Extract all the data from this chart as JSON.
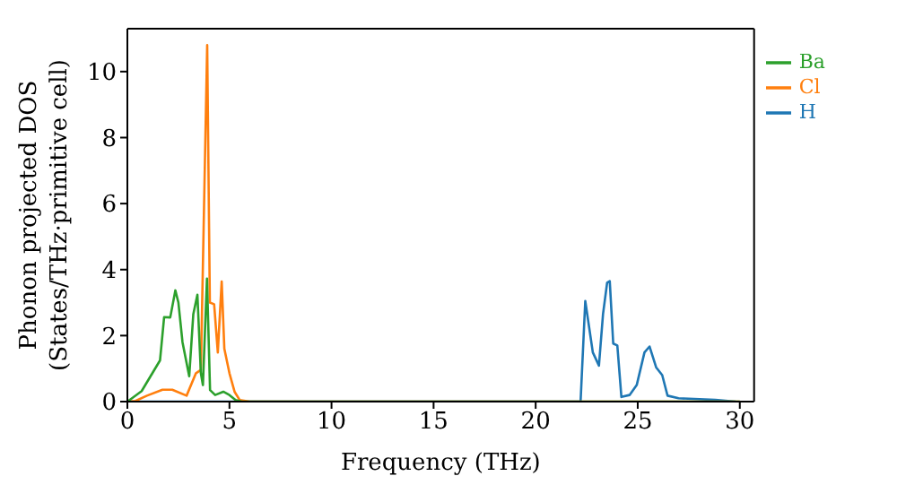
{
  "chart_data": {
    "type": "line",
    "xlabel": "Frequency (THz)",
    "ylabel": "Phonon projected DOS\n(States/THz·primitive cell)",
    "xlim": [
      0,
      30.7
    ],
    "ylim": [
      0,
      11.3
    ],
    "xticks": [
      0,
      5,
      10,
      15,
      20,
      25,
      30
    ],
    "yticks": [
      0,
      2,
      4,
      6,
      8,
      10
    ],
    "legend": "top right",
    "grid": false,
    "marker": "none",
    "line_style": "solid",
    "series": [
      {
        "name": "H",
        "color": "#1f77b4",
        "x": [
          0,
          22.2,
          22.43,
          22.8,
          23.1,
          23.3,
          23.5,
          23.63,
          23.8,
          24.0,
          24.2,
          24.6,
          24.95,
          25.33,
          25.58,
          25.9,
          26.2,
          26.46,
          27,
          28.8,
          29.8
        ],
        "values": [
          0,
          0,
          3.05,
          1.49,
          1.09,
          2.65,
          3.6,
          3.65,
          1.76,
          1.7,
          0.14,
          0.2,
          0.5,
          1.49,
          1.67,
          1.04,
          0.8,
          0.18,
          0.1,
          0.05,
          0
        ]
      },
      {
        "name": "Cl",
        "color": "#ff7f0e",
        "x": [
          0,
          0.4,
          0.96,
          1.72,
          2.2,
          2.9,
          3.36,
          3.6,
          3.91,
          4.04,
          4.25,
          4.43,
          4.62,
          4.75,
          5.0,
          5.25,
          5.5,
          6,
          30
        ],
        "values": [
          0,
          0.02,
          0.18,
          0.36,
          0.36,
          0.18,
          0.86,
          0.96,
          10.8,
          3.0,
          2.95,
          1.49,
          3.64,
          1.6,
          0.86,
          0.3,
          0.05,
          0,
          0
        ]
      },
      {
        "name": "Ba",
        "color": "#2ca02c",
        "x": [
          0,
          0.7,
          1.6,
          1.8,
          2.1,
          2.35,
          2.5,
          2.7,
          3.03,
          3.23,
          3.43,
          3.6,
          3.7,
          3.9,
          4.05,
          4.3,
          4.7,
          5.0,
          5.3,
          5.6,
          30
        ],
        "values": [
          0,
          0.32,
          1.25,
          2.56,
          2.55,
          3.37,
          3.0,
          1.8,
          0.77,
          2.65,
          3.24,
          0.86,
          0.5,
          3.73,
          0.35,
          0.2,
          0.3,
          0.2,
          0.05,
          0,
          0
        ]
      }
    ]
  }
}
